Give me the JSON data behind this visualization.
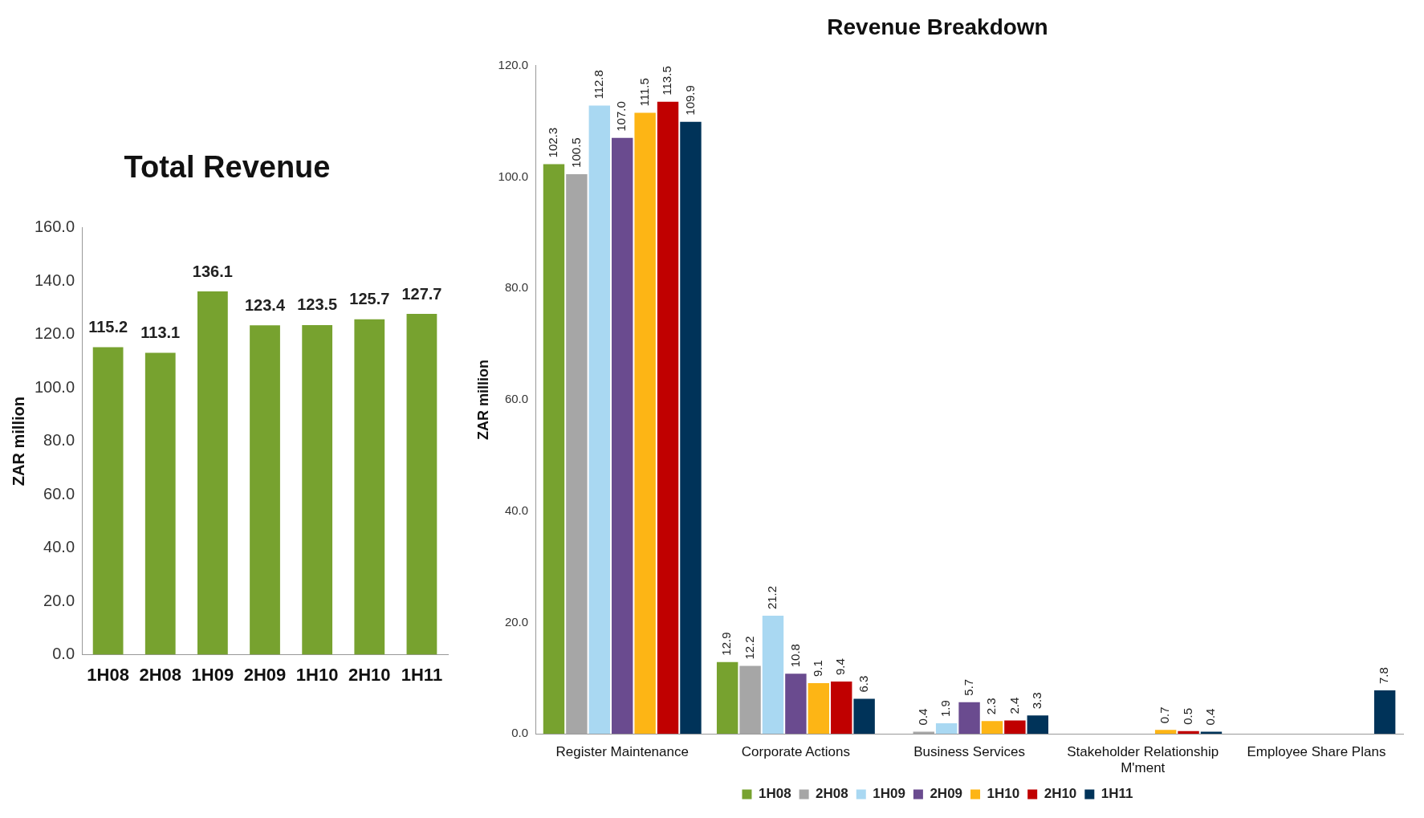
{
  "chart_data": [
    {
      "type": "bar",
      "title": "Total Revenue",
      "ylabel": "ZAR million",
      "categories": [
        "1H08",
        "2H08",
        "1H09",
        "2H09",
        "1H10",
        "2H10",
        "1H11"
      ],
      "values": [
        115.2,
        113.1,
        136.1,
        123.4,
        123.5,
        125.7,
        127.7
      ],
      "color": "#77a22f",
      "ylim": [
        0,
        160
      ],
      "yticks": [
        {
          "value": 0,
          "label": "0.0"
        },
        {
          "value": 20,
          "label": "20.0"
        },
        {
          "value": 40,
          "label": "40.0"
        },
        {
          "value": 60,
          "label": "60.0"
        },
        {
          "value": 80,
          "label": "80.0"
        },
        {
          "value": 100,
          "label": "100.0"
        },
        {
          "value": 120,
          "label": "120.0"
        },
        {
          "value": 140,
          "label": "140.0"
        },
        {
          "value": 160,
          "label": "160.0"
        }
      ],
      "data_labels": true,
      "grid": false,
      "legend": false
    },
    {
      "type": "bar",
      "title": "Revenue Breakdown",
      "ylabel": "ZAR million",
      "categories": [
        "Register Maintenance",
        "Corporate Actions",
        "Business Services",
        "Stakeholder Relationship M'ment",
        "Employee Share Plans"
      ],
      "series": [
        {
          "name": "1H08",
          "color": "#77a22f",
          "values": [
            102.3,
            12.9,
            null,
            null,
            null
          ],
          "value_labels": [
            "102.3",
            "12.9",
            null,
            null,
            null
          ]
        },
        {
          "name": "2H08",
          "color": "#a6a6a6",
          "values": [
            100.5,
            12.2,
            0.4,
            null,
            null
          ],
          "value_labels": [
            "100.5",
            "12.2",
            "0.4",
            null,
            null
          ]
        },
        {
          "name": "1H09",
          "color": "#a9d8f2",
          "values": [
            112.8,
            21.2,
            1.9,
            null,
            null
          ],
          "value_labels": [
            "112.8",
            "21.2",
            "1.9",
            null,
            null
          ]
        },
        {
          "name": "2H09",
          "color": "#6a4b8f",
          "values": [
            107.0,
            10.8,
            5.7,
            null,
            null
          ],
          "value_labels": [
            "107.0",
            "10.8",
            "5.7",
            null,
            null
          ]
        },
        {
          "name": "1H10",
          "color": "#fdb515",
          "values": [
            111.5,
            9.1,
            2.3,
            0.7,
            null
          ],
          "value_labels": [
            "111.5",
            "9.1",
            "2.3",
            "0.7",
            null
          ]
        },
        {
          "name": "2H10",
          "color": "#c00000",
          "values": [
            113.5,
            9.4,
            2.4,
            0.5,
            null
          ],
          "value_labels": [
            "113.5",
            "9.4",
            "2.4",
            "0.5",
            null
          ]
        },
        {
          "name": "1H11",
          "color": "#003359",
          "values": [
            109.9,
            6.3,
            3.3,
            0.4,
            7.8
          ],
          "value_labels": [
            "109.9",
            "6.3",
            "3.3",
            "0.4",
            "7.8"
          ]
        }
      ],
      "ylim": [
        0,
        120
      ],
      "yticks": [
        {
          "value": 0,
          "label": "0.0"
        },
        {
          "value": 20,
          "label": "20.0"
        },
        {
          "value": 40,
          "label": "40.0"
        },
        {
          "value": 60,
          "label": "60.0"
        },
        {
          "value": 80,
          "label": "80.0"
        },
        {
          "value": 100,
          "label": "100.0"
        },
        {
          "value": 120,
          "label": "120.0"
        }
      ],
      "grid": false,
      "legend": "bottom"
    }
  ]
}
